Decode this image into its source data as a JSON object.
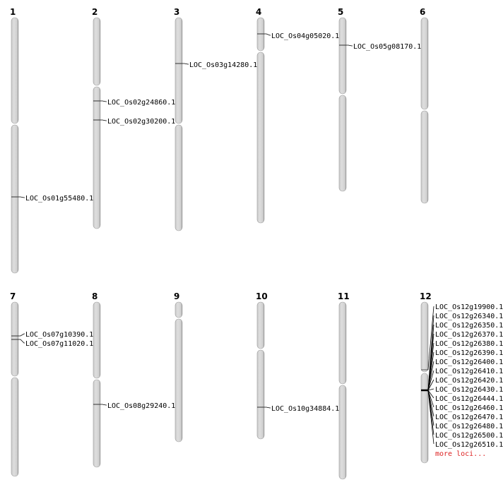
{
  "chromosomes": [
    {
      "name": "1",
      "genes": [
        "LOC_Os01g55480.1"
      ]
    },
    {
      "name": "2",
      "genes": [
        "LOC_Os02g24860.1",
        "LOC_Os02g30200.1"
      ]
    },
    {
      "name": "3",
      "genes": [
        "LOC_Os03g14280.1"
      ]
    },
    {
      "name": "4",
      "genes": [
        "LOC_Os04g05020.1"
      ]
    },
    {
      "name": "5",
      "genes": [
        "LOC_Os05g08170.1"
      ]
    },
    {
      "name": "6",
      "genes": []
    },
    {
      "name": "7",
      "genes": [
        "LOC_Os07g10390.1",
        "LOC_Os07g11020.1"
      ]
    },
    {
      "name": "8",
      "genes": [
        "LOC_Os08g29240.1"
      ]
    },
    {
      "name": "9",
      "genes": []
    },
    {
      "name": "10",
      "genes": [
        "LOC_Os10g34884.1"
      ]
    },
    {
      "name": "11",
      "genes": []
    },
    {
      "name": "12",
      "genes": [
        "LOC_Os12g19900.1",
        "LOC_Os12g26340.1",
        "LOC_Os12g26350.1",
        "LOC_Os12g26370.1",
        "LOC_Os12g26380.1",
        "LOC_Os12g26390.1",
        "LOC_Os12g26400.1",
        "LOC_Os12g26410.1",
        "LOC_Os12g26420.1",
        "LOC_Os12g26430.1",
        "LOC_Os12g26444.1",
        "LOC_Os12g26460.1",
        "LOC_Os12g26470.1",
        "LOC_Os12g26480.1",
        "LOC_Os12g26500.1",
        "LOC_Os12g26510.1"
      ],
      "more_label": "more loci..."
    }
  ],
  "colors": {
    "chromosome_fill": "#d4d4d4",
    "chromosome_edge": "#888888",
    "more_link": "#dd2222"
  }
}
